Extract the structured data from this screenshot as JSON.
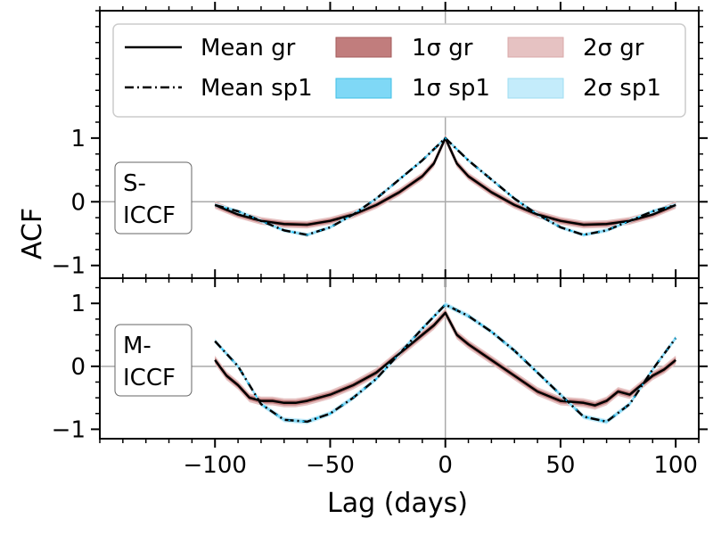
{
  "chart_data": [
    {
      "type": "line",
      "panel_label": [
        "S-",
        "ICCF"
      ],
      "ylabel": "ACF",
      "xlim": [
        -150,
        110
      ],
      "ylim": [
        -1.2,
        3.0
      ],
      "yticks": [
        -1,
        0,
        1
      ],
      "ytick_labels": [
        "−1",
        "0",
        "1"
      ],
      "grid": "zero lines",
      "series": [
        {
          "name": "Mean gr",
          "band_1sigma": 0.035,
          "band_2sigma": 0.06,
          "x": [
            -100,
            -90,
            -80,
            -70,
            -60,
            -50,
            -40,
            -30,
            -20,
            -10,
            -5,
            0,
            5,
            10,
            20,
            30,
            40,
            50,
            60,
            70,
            80,
            90,
            100
          ],
          "y": [
            -0.05,
            -0.2,
            -0.3,
            -0.35,
            -0.36,
            -0.3,
            -0.2,
            -0.05,
            0.15,
            0.4,
            0.6,
            1.0,
            0.6,
            0.4,
            0.15,
            -0.05,
            -0.2,
            -0.3,
            -0.36,
            -0.35,
            -0.3,
            -0.2,
            -0.05
          ]
        },
        {
          "name": "Mean sp1",
          "band_1sigma": 0.015,
          "band_2sigma": 0.03,
          "x": [
            -100,
            -90,
            -80,
            -70,
            -60,
            -50,
            -40,
            -30,
            -20,
            -10,
            0,
            10,
            20,
            30,
            40,
            50,
            60,
            70,
            80,
            90,
            100
          ],
          "y": [
            -0.05,
            -0.15,
            -0.3,
            -0.45,
            -0.52,
            -0.4,
            -0.2,
            0.05,
            0.35,
            0.65,
            1.0,
            0.65,
            0.35,
            0.05,
            -0.2,
            -0.4,
            -0.52,
            -0.45,
            -0.3,
            -0.15,
            -0.05
          ]
        }
      ]
    },
    {
      "type": "line",
      "panel_label": [
        "M-",
        "ICCF"
      ],
      "xlabel": "Lag (days)",
      "xlim": [
        -150,
        110
      ],
      "ylim": [
        -1.15,
        1.4
      ],
      "xticks": [
        -100,
        -50,
        0,
        50,
        100
      ],
      "xtick_labels": [
        "−100",
        "−50",
        "0",
        "50",
        "100"
      ],
      "yticks": [
        -1,
        0,
        1
      ],
      "ytick_labels": [
        "−1",
        "0",
        "1"
      ],
      "series": [
        {
          "name": "Mean gr",
          "band_1sigma": 0.04,
          "band_2sigma": 0.07,
          "x": [
            -100,
            -95,
            -90,
            -85,
            -80,
            -75,
            -70,
            -65,
            -60,
            -50,
            -40,
            -30,
            -20,
            -10,
            -5,
            0,
            5,
            10,
            20,
            30,
            40,
            50,
            60,
            65,
            70,
            75,
            80,
            85,
            90,
            95,
            100
          ],
          "y": [
            0.1,
            -0.15,
            -0.3,
            -0.5,
            -0.55,
            -0.55,
            -0.58,
            -0.58,
            -0.55,
            -0.45,
            -0.3,
            -0.1,
            0.2,
            0.5,
            0.65,
            0.85,
            0.5,
            0.35,
            0.1,
            -0.15,
            -0.4,
            -0.55,
            -0.58,
            -0.62,
            -0.55,
            -0.4,
            -0.45,
            -0.3,
            -0.15,
            -0.05,
            0.1
          ]
        },
        {
          "name": "Mean sp1",
          "band_1sigma": 0.02,
          "band_2sigma": 0.04,
          "x": [
            -100,
            -90,
            -80,
            -70,
            -60,
            -50,
            -40,
            -30,
            -20,
            -10,
            0,
            10,
            20,
            30,
            40,
            50,
            60,
            70,
            80,
            90,
            100
          ],
          "y": [
            0.4,
            0.0,
            -0.6,
            -0.85,
            -0.88,
            -0.75,
            -0.5,
            -0.2,
            0.2,
            0.6,
            0.98,
            0.8,
            0.55,
            0.25,
            -0.1,
            -0.45,
            -0.8,
            -0.88,
            -0.6,
            -0.05,
            0.45
          ]
        }
      ]
    }
  ],
  "legend": {
    "placement": "top",
    "entries": [
      {
        "label": "Mean gr",
        "kind": "solid-line"
      },
      {
        "label": "Mean sp1",
        "kind": "dashdot-line"
      },
      {
        "label": "1σ gr",
        "kind": "patch",
        "color": "#c17d7d"
      },
      {
        "label": "1σ sp1",
        "kind": "patch",
        "color": "#7fd8f6"
      },
      {
        "label": "2σ gr",
        "kind": "patch",
        "color": "#e6c2c2"
      },
      {
        "label": "2σ sp1",
        "kind": "patch",
        "color": "#c4ecfb"
      }
    ]
  },
  "colors": {
    "line": "#000000",
    "sigma1_gr": "#c17d7d",
    "sigma2_gr": "#e6c2c2",
    "sigma1_sp1": "#7fd8f6",
    "sigma2_sp1": "#c4ecfb",
    "sp1_dot": "#00bfff",
    "grid": "#aaaaaa"
  }
}
